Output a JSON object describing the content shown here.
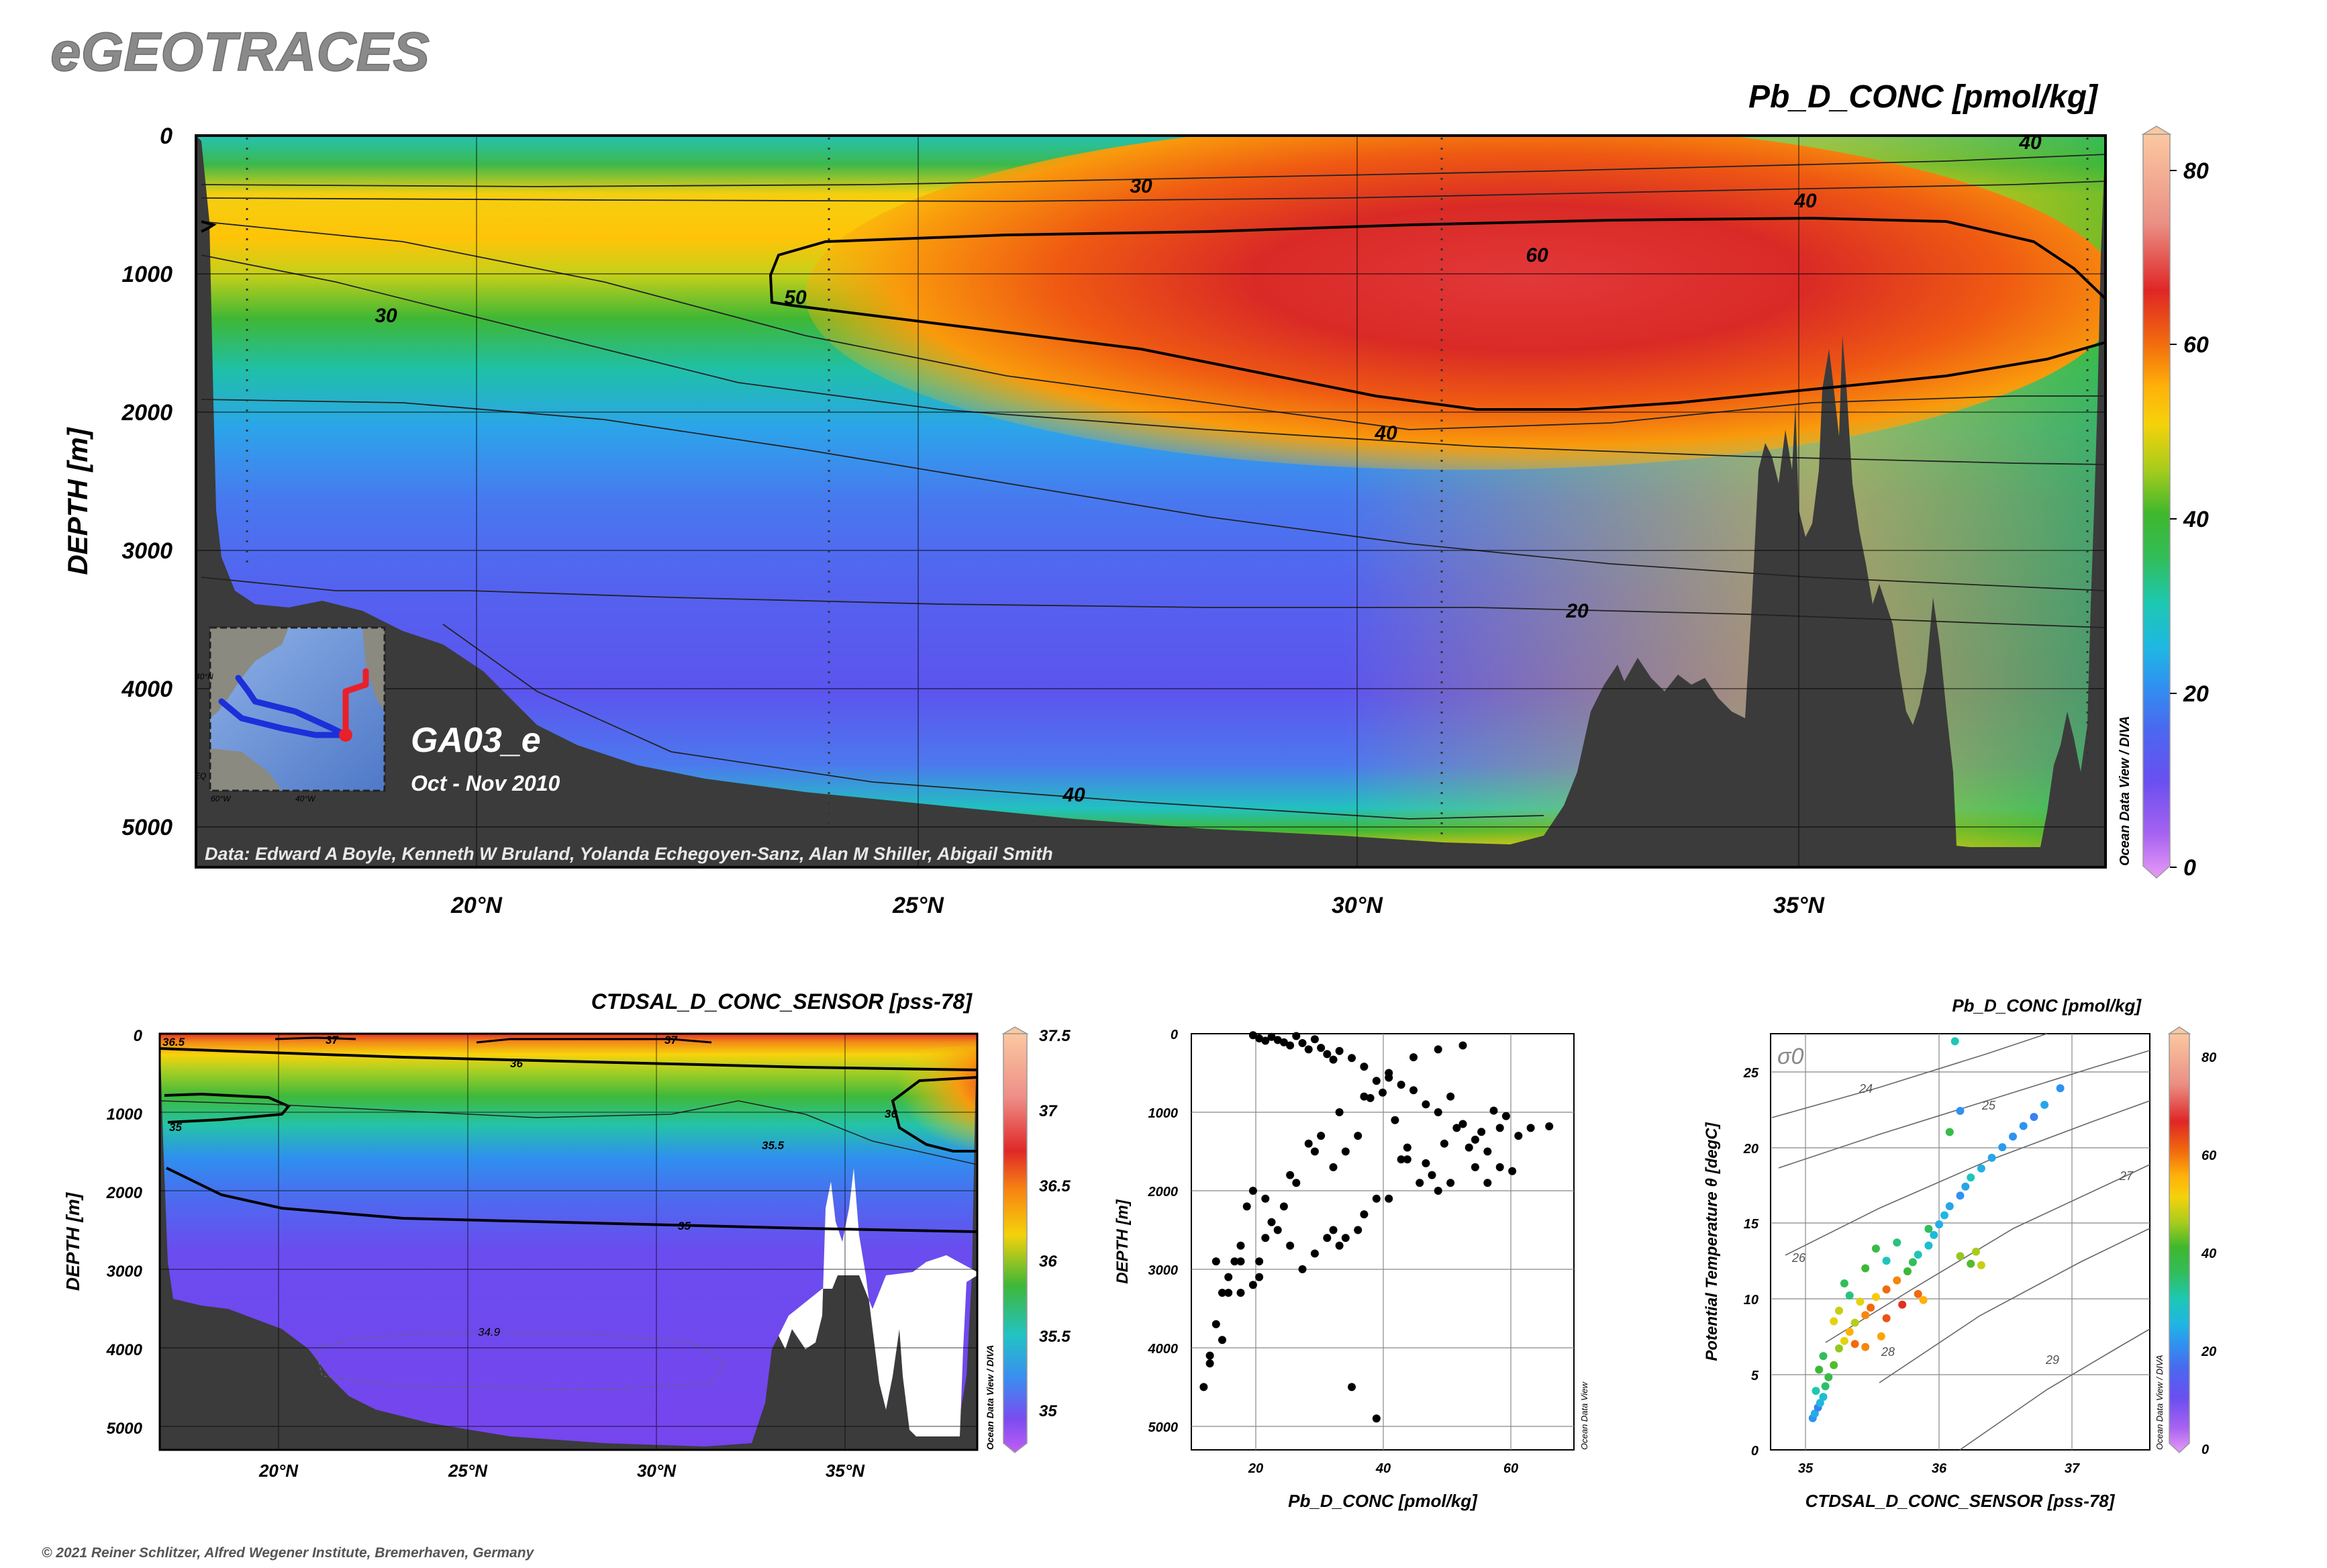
{
  "brand": "eGEOTRACES",
  "copyright": "© 2021 Reiner Schlitzer, Alfred Wegener Institute, Bremerhaven, Germany",
  "odv_label": "Ocean Data View / DIVA",
  "odv_label_short": "Ocean Data View",
  "colors": {
    "terrain": "#3b3b3b",
    "frame": "#000000"
  },
  "chart_data": [
    {
      "type": "heatmap",
      "id": "main-section",
      "title": "Pb_D_CONC [pmol/kg]",
      "ylabel": "DEPTH [m]",
      "xlabel": "",
      "x_ticks": [
        "20°N",
        "25°N",
        "30°N",
        "35°N"
      ],
      "y_ticks": [
        "0",
        "1000",
        "2000",
        "3000",
        "4000",
        "5000"
      ],
      "colorbar_ticks": [
        "0",
        "20",
        "40",
        "60",
        "80"
      ],
      "colorbar_range": [
        0,
        84
      ],
      "xlim": [
        16.8,
        38.5
      ],
      "ylim": [
        5300,
        0
      ],
      "contour_labels": [
        "30",
        "30",
        "40",
        "40",
        "40",
        "40",
        "50",
        "60",
        "20"
      ],
      "section_name": "GA03_e",
      "date_range": "Oct - Nov 2010",
      "data_credit": "Data: Edward A Boyle, Kenneth W Bruland, Yolanda Echegoyen-Sanz, Alan M Shiller, Abigail Smith",
      "map_labels": [
        "40°N",
        "60°W",
        "40°W",
        "EQ"
      ]
    },
    {
      "type": "heatmap",
      "id": "salinity-section",
      "title": "CTDSAL_D_CONC_SENSOR [pss-78]",
      "ylabel": "DEPTH [m]",
      "x_ticks": [
        "20°N",
        "25°N",
        "30°N",
        "35°N"
      ],
      "y_ticks": [
        "0",
        "1000",
        "2000",
        "3000",
        "4000",
        "5000"
      ],
      "colorbar_ticks": [
        "35",
        "35.5",
        "36",
        "36.5",
        "37",
        "37.5"
      ],
      "colorbar_range": [
        34.8,
        37.5
      ],
      "contour_labels": [
        "36.5",
        "37",
        "37",
        "36",
        "35",
        "35.5",
        "36",
        "35",
        "34.9"
      ]
    },
    {
      "type": "scatter",
      "id": "profile-scatter",
      "xlabel": "Pb_D_CONC [pmol/kg]",
      "ylabel": "DEPTH [m]",
      "x_ticks": [
        "20",
        "40",
        "60"
      ],
      "y_ticks": [
        "0",
        "1000",
        "2000",
        "3000",
        "4000",
        "5000"
      ],
      "xlim": [
        10,
        72
      ],
      "ylim": [
        5300,
        0
      ],
      "points": [
        [
          20,
          20
        ],
        [
          21,
          60
        ],
        [
          22,
          90
        ],
        [
          23,
          40
        ],
        [
          24,
          80
        ],
        [
          25,
          110
        ],
        [
          26,
          150
        ],
        [
          27,
          30
        ],
        [
          28,
          120
        ],
        [
          29,
          200
        ],
        [
          30,
          70
        ],
        [
          31,
          180
        ],
        [
          32,
          260
        ],
        [
          33,
          330
        ],
        [
          34,
          220
        ],
        [
          36,
          310
        ],
        [
          38,
          420
        ],
        [
          40,
          600
        ],
        [
          42,
          560
        ],
        [
          44,
          650
        ],
        [
          46,
          720
        ],
        [
          48,
          900
        ],
        [
          50,
          1000
        ],
        [
          52,
          800
        ],
        [
          54,
          1150
        ],
        [
          56,
          1350
        ],
        [
          58,
          1500
        ],
        [
          60,
          1700
        ],
        [
          62,
          1750
        ],
        [
          61,
          1050
        ],
        [
          59,
          980
        ],
        [
          57,
          1250
        ],
        [
          55,
          1450
        ],
        [
          53,
          1200
        ],
        [
          51,
          1400
        ],
        [
          49,
          1800
        ],
        [
          47,
          1900
        ],
        [
          45,
          1600
        ],
        [
          43,
          1100
        ],
        [
          41,
          750
        ],
        [
          39,
          820
        ],
        [
          37,
          1300
        ],
        [
          35,
          1500
        ],
        [
          33,
          1700
        ],
        [
          31,
          1300
        ],
        [
          29,
          1400
        ],
        [
          27,
          1900
        ],
        [
          25,
          2200
        ],
        [
          23,
          2400
        ],
        [
          22,
          2600
        ],
        [
          21,
          2900
        ],
        [
          20,
          2000
        ],
        [
          19,
          2200
        ],
        [
          18,
          2700
        ],
        [
          17,
          2900
        ],
        [
          16,
          3100
        ],
        [
          15,
          3300
        ],
        [
          14,
          3700
        ],
        [
          13,
          4100
        ],
        [
          12,
          4500
        ],
        [
          13,
          4200
        ],
        [
          15,
          3900
        ],
        [
          18,
          3300
        ],
        [
          20,
          3200
        ],
        [
          21,
          3100
        ],
        [
          33,
          2500
        ],
        [
          35,
          2600
        ],
        [
          34,
          2700
        ],
        [
          37,
          2500
        ],
        [
          38,
          2300
        ],
        [
          40,
          2100
        ],
        [
          42,
          2100
        ],
        [
          44,
          1600
        ],
        [
          45,
          1450
        ],
        [
          48,
          1650
        ],
        [
          50,
          2000
        ],
        [
          52,
          1900
        ],
        [
          56,
          1700
        ],
        [
          58,
          1900
        ],
        [
          60,
          1200
        ],
        [
          63,
          1300
        ],
        [
          65,
          1200
        ],
        [
          68,
          1180
        ],
        [
          36,
          4500
        ],
        [
          40,
          4900
        ],
        [
          24,
          2500
        ],
        [
          26,
          2700
        ],
        [
          28,
          3000
        ],
        [
          30,
          2800
        ],
        [
          32,
          2600
        ],
        [
          14,
          2900
        ],
        [
          16,
          3300
        ],
        [
          18,
          2900
        ],
        [
          22,
          2100
        ],
        [
          26,
          1800
        ],
        [
          30,
          1500
        ],
        [
          34,
          1000
        ],
        [
          38,
          800
        ],
        [
          42,
          500
        ],
        [
          46,
          300
        ],
        [
          50,
          200
        ],
        [
          54,
          150
        ]
      ]
    },
    {
      "type": "scatter",
      "id": "ts-diagram",
      "title": "Pb_D_CONC [pmol/kg]",
      "xlabel": "CTDSAL_D_CONC_SENSOR [pss-78]",
      "ylabel": "Potential Temperature θ [degC]",
      "sigma_label": "σ0",
      "x_ticks": [
        "35",
        "36",
        "37"
      ],
      "y_ticks": [
        "0",
        "5",
        "10",
        "15",
        "20",
        "25"
      ],
      "xlim": [
        34.5,
        38.1
      ],
      "ylim": [
        0,
        27.5
      ],
      "isopycnal_labels": [
        "24",
        "25",
        "26",
        "27",
        "28",
        "29"
      ],
      "colorbar_ticks": [
        "0",
        "20",
        "40",
        "60",
        "80"
      ],
      "colorbar_range": [
        0,
        84
      ],
      "points": [
        [
          34.9,
          2.1,
          22
        ],
        [
          34.92,
          2.4,
          25
        ],
        [
          34.95,
          2.8,
          20
        ],
        [
          34.97,
          3.1,
          26
        ],
        [
          35.0,
          3.5,
          28
        ],
        [
          34.93,
          3.9,
          31
        ],
        [
          35.02,
          4.2,
          35
        ],
        [
          35.05,
          4.8,
          38
        ],
        [
          34.96,
          5.3,
          40
        ],
        [
          35.1,
          5.6,
          42
        ],
        [
          35.0,
          6.2,
          36
        ],
        [
          35.15,
          6.7,
          45
        ],
        [
          35.2,
          7.2,
          50
        ],
        [
          35.25,
          7.8,
          55
        ],
        [
          35.3,
          8.4,
          47
        ],
        [
          35.4,
          8.9,
          58
        ],
        [
          35.45,
          9.4,
          60
        ],
        [
          35.5,
          10.1,
          52
        ],
        [
          35.6,
          10.6,
          60
        ],
        [
          35.7,
          11.2,
          58
        ],
        [
          35.8,
          11.8,
          40
        ],
        [
          35.85,
          12.4,
          36
        ],
        [
          35.9,
          12.9,
          30
        ],
        [
          36.0,
          13.5,
          28
        ],
        [
          36.05,
          14.2,
          27
        ],
        [
          36.1,
          14.9,
          25
        ],
        [
          36.15,
          15.5,
          26
        ],
        [
          36.2,
          16.1,
          24
        ],
        [
          36.3,
          16.8,
          22
        ],
        [
          36.35,
          17.4,
          24
        ],
        [
          36.4,
          18.0,
          30
        ],
        [
          36.5,
          18.6,
          25
        ],
        [
          36.6,
          19.3,
          24
        ],
        [
          36.7,
          20.0,
          23
        ],
        [
          36.8,
          20.7,
          22
        ],
        [
          36.9,
          21.4,
          22
        ],
        [
          37.0,
          22.0,
          20
        ],
        [
          37.1,
          22.8,
          24
        ],
        [
          37.25,
          23.9,
          22
        ],
        [
          36.2,
          21.0,
          38
        ],
        [
          36.3,
          22.4,
          22
        ],
        [
          36.25,
          27.0,
          30
        ],
        [
          35.1,
          8.5,
          50
        ],
        [
          35.15,
          9.2,
          48
        ],
        [
          35.3,
          7.0,
          60
        ],
        [
          35.4,
          6.8,
          58
        ],
        [
          35.55,
          7.5,
          56
        ],
        [
          35.6,
          8.7,
          62
        ],
        [
          35.75,
          9.6,
          65
        ],
        [
          35.9,
          10.3,
          60
        ],
        [
          35.95,
          9.9,
          55
        ],
        [
          36.3,
          12.8,
          45
        ],
        [
          36.4,
          12.3,
          42
        ],
        [
          36.45,
          13.1,
          46
        ],
        [
          36.5,
          12.2,
          48
        ],
        [
          36.0,
          14.6,
          36
        ],
        [
          35.7,
          13.7,
          34
        ],
        [
          35.6,
          12.5,
          30
        ],
        [
          35.5,
          13.3,
          38
        ],
        [
          35.4,
          12.0,
          40
        ],
        [
          35.2,
          11.0,
          36
        ],
        [
          35.25,
          10.2,
          34
        ],
        [
          35.35,
          9.8,
          50
        ]
      ]
    }
  ]
}
